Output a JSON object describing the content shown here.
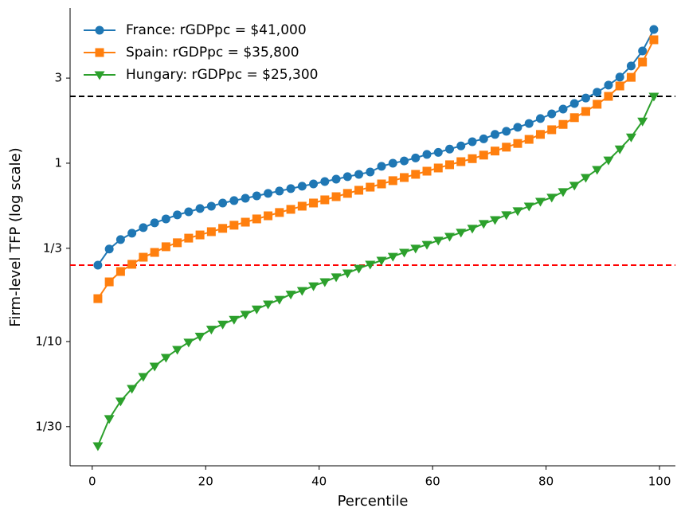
{
  "chart_data": {
    "type": "line",
    "xlabel": "Percentile",
    "ylabel": "Firm-level TFP (log scale)",
    "log_y": true,
    "legend": "upper left",
    "xlim": [
      -3.9,
      102.8
    ],
    "ylim": [
      0.0201,
      7.42
    ],
    "xticks": [
      0,
      20,
      40,
      60,
      80,
      100
    ],
    "yticks": [
      {
        "value": 0.03333,
        "label": "1/30"
      },
      {
        "value": 0.1,
        "label": "1/10"
      },
      {
        "value": 0.3333,
        "label": "1/3"
      },
      1,
      3
    ],
    "hlines": [
      {
        "value": 2.37,
        "color": "#000000"
      },
      {
        "value": 0.268,
        "color": "#ff0000"
      }
    ],
    "x": [
      1,
      3,
      5,
      7,
      9,
      11,
      13,
      15,
      17,
      19,
      21,
      23,
      25,
      27,
      29,
      31,
      33,
      35,
      37,
      39,
      41,
      43,
      45,
      47,
      49,
      51,
      53,
      55,
      57,
      59,
      61,
      63,
      65,
      67,
      69,
      71,
      73,
      75,
      77,
      79,
      81,
      83,
      85,
      87,
      89,
      91,
      93,
      95,
      97,
      99
    ],
    "series": [
      {
        "name": "France: rGDPpc = $41,000",
        "color": "#1f77b4",
        "marker": "circle",
        "values": [
          0.268,
          0.33,
          0.373,
          0.405,
          0.435,
          0.463,
          0.487,
          0.513,
          0.534,
          0.557,
          0.574,
          0.598,
          0.617,
          0.636,
          0.656,
          0.677,
          0.698,
          0.72,
          0.743,
          0.765,
          0.789,
          0.814,
          0.84,
          0.866,
          0.893,
          0.96,
          1.0,
          1.03,
          1.07,
          1.12,
          1.15,
          1.2,
          1.25,
          1.32,
          1.37,
          1.45,
          1.51,
          1.59,
          1.67,
          1.78,
          1.89,
          2.01,
          2.16,
          2.32,
          2.5,
          2.74,
          3.04,
          3.51,
          4.26,
          5.62
        ]
      },
      {
        "name": "Spain: rGDPpc = $35,800",
        "color": "#ff7f0e",
        "marker": "square",
        "values": [
          0.174,
          0.216,
          0.247,
          0.271,
          0.297,
          0.316,
          0.34,
          0.358,
          0.38,
          0.396,
          0.413,
          0.431,
          0.449,
          0.467,
          0.487,
          0.507,
          0.529,
          0.551,
          0.574,
          0.598,
          0.623,
          0.649,
          0.677,
          0.705,
          0.734,
          0.765,
          0.798,
          0.831,
          0.866,
          0.902,
          0.94,
          0.98,
          1.02,
          1.06,
          1.11,
          1.17,
          1.23,
          1.29,
          1.36,
          1.45,
          1.54,
          1.65,
          1.8,
          1.95,
          2.14,
          2.37,
          2.71,
          3.03,
          3.69,
          4.92
        ]
      },
      {
        "name": "Hungary: rGDPpc = $25,300",
        "color": "#2ca02c",
        "marker": "triangle-down",
        "values": [
          0.026,
          0.0369,
          0.0463,
          0.0545,
          0.0636,
          0.0727,
          0.0814,
          0.0902,
          0.099,
          0.107,
          0.117,
          0.125,
          0.133,
          0.142,
          0.152,
          0.162,
          0.172,
          0.184,
          0.193,
          0.205,
          0.216,
          0.23,
          0.242,
          0.257,
          0.271,
          0.285,
          0.3,
          0.316,
          0.333,
          0.35,
          0.369,
          0.388,
          0.409,
          0.431,
          0.458,
          0.482,
          0.513,
          0.54,
          0.574,
          0.61,
          0.643,
          0.691,
          0.75,
          0.831,
          0.921,
          1.04,
          1.2,
          1.4,
          1.72,
          2.37
        ]
      }
    ]
  }
}
